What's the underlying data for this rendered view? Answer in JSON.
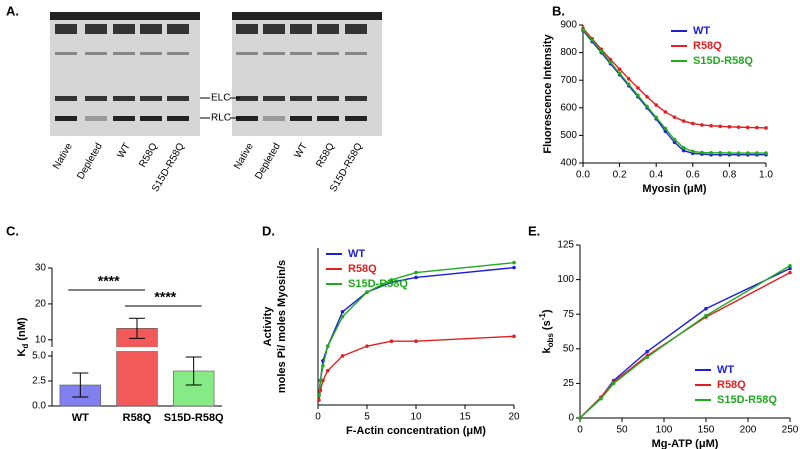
{
  "gel": {
    "label": "A.",
    "lanes": [
      "Native",
      "Depleted",
      "WT",
      "R58Q",
      "S15D-R58Q"
    ],
    "bands": [
      "ELC",
      "RLC"
    ]
  },
  "chart_data": [
    {
      "type": "line",
      "label": "B.",
      "xlabel": "Myosin (μM)",
      "ylabel": "Fluorescence Intensity",
      "xlim": [
        0,
        1
      ],
      "ylim": [
        400,
        900
      ],
      "xticks": [
        {
          "value": 0,
          "label": "0.0"
        },
        {
          "value": 0.2,
          "label": "0.2"
        },
        {
          "value": 0.4,
          "label": "0.4"
        },
        {
          "value": 0.6,
          "label": "0.6"
        },
        {
          "value": 0.8,
          "label": "0.8"
        },
        {
          "value": 1,
          "label": "1.0"
        }
      ],
      "yticks": [
        400,
        500,
        600,
        700,
        800,
        900
      ],
      "legend": "upper right",
      "x": [
        0,
        0.05,
        0.1,
        0.15,
        0.2,
        0.25,
        0.3,
        0.35,
        0.4,
        0.45,
        0.5,
        0.55,
        0.6,
        0.65,
        0.7,
        0.75,
        0.8,
        0.85,
        0.9,
        0.95,
        1
      ],
      "series": [
        {
          "name": "WT",
          "color": "#1f1fd6",
          "values": [
            880,
            840,
            800,
            760,
            720,
            680,
            640,
            600,
            560,
            515,
            475,
            445,
            435,
            432,
            430,
            430,
            430,
            430,
            430,
            430,
            430
          ]
        },
        {
          "name": "R58Q",
          "color": "#e02020",
          "values": [
            888,
            850,
            812,
            775,
            740,
            705,
            672,
            640,
            610,
            585,
            566,
            552,
            543,
            538,
            535,
            533,
            531,
            530,
            529,
            528,
            527
          ]
        },
        {
          "name": "S15D-R58Q",
          "color": "#1faa1f",
          "values": [
            882,
            845,
            805,
            765,
            725,
            685,
            645,
            605,
            565,
            525,
            485,
            455,
            442,
            438,
            437,
            437,
            436,
            436,
            436,
            436,
            436
          ]
        }
      ]
    },
    {
      "type": "bar",
      "label": "C.",
      "ylabel_parts": [
        {
          "text": "K"
        },
        {
          "text": "d",
          "sub": true
        },
        {
          "text": " (nM)"
        }
      ],
      "categories": [
        "WT",
        "R58Q",
        "S15D-R58Q"
      ],
      "values": [
        2.1,
        13.2,
        3.5
      ],
      "errors": [
        1.2,
        2.8,
        1.4
      ],
      "colors": [
        "#8080ee",
        "#f25a5a",
        "#86ea86"
      ],
      "ylim": [
        0,
        30
      ],
      "axis_break": [
        5.5,
        8
      ],
      "yticks": [
        {
          "value": 0,
          "label": "0.0"
        },
        {
          "value": 2.5,
          "label": "2.5"
        },
        {
          "value": 5,
          "label": "5.0"
        },
        10,
        20,
        30
      ],
      "annotations": [
        "****",
        "****"
      ]
    },
    {
      "type": "line",
      "label": "D.",
      "xlabel": "F-Actin concentration (μM)",
      "ylabel_lines": [
        "Activity",
        "moles Pi/ moles Myosin/s"
      ],
      "xlim": [
        0,
        20
      ],
      "ylim": [
        0,
        0.32
      ],
      "xticks": [
        0,
        5,
        10,
        15,
        20
      ],
      "legend": "upper left",
      "x": [
        0.1,
        0.25,
        0.5,
        1,
        2.5,
        5,
        7.5,
        10,
        20
      ],
      "series": [
        {
          "name": "WT",
          "color": "#1f1fd6",
          "values": [
            0.02,
            0.05,
            0.09,
            0.12,
            0.19,
            0.23,
            0.25,
            0.26,
            0.28
          ]
        },
        {
          "name": "R58Q",
          "color": "#e02020",
          "values": [
            0.01,
            0.03,
            0.05,
            0.07,
            0.1,
            0.12,
            0.13,
            0.13,
            0.14
          ]
        },
        {
          "name": "S15D-R58Q",
          "color": "#1faa1f",
          "values": [
            0.02,
            0.05,
            0.08,
            0.12,
            0.18,
            0.23,
            0.255,
            0.27,
            0.29
          ]
        }
      ]
    },
    {
      "type": "line",
      "label": "E.",
      "xlabel": "Mg-ATP (μM)",
      "ylabel_parts": [
        {
          "text": "k"
        },
        {
          "text": "obs",
          "sub": true
        },
        {
          "text": " (s"
        },
        {
          "text": "-1",
          "sup": true
        },
        {
          "text": ")"
        }
      ],
      "xlim": [
        0,
        250
      ],
      "ylim": [
        0,
        125
      ],
      "xticks": [
        0,
        50,
        100,
        150,
        200,
        250
      ],
      "yticks": [
        0,
        25,
        50,
        75,
        100,
        125
      ],
      "legend": "lower right",
      "x": [
        0,
        25,
        40,
        80,
        150,
        250
      ],
      "series": [
        {
          "name": "WT",
          "color": "#1f1fd6",
          "values": [
            0,
            15,
            27,
            48,
            79,
            108
          ]
        },
        {
          "name": "R58Q",
          "color": "#e02020",
          "values": [
            0,
            15,
            26,
            45,
            73,
            105
          ]
        },
        {
          "name": "S15D-R58Q",
          "color": "#1faa1f",
          "values": [
            0,
            14,
            25,
            44,
            74,
            110
          ]
        }
      ]
    }
  ]
}
